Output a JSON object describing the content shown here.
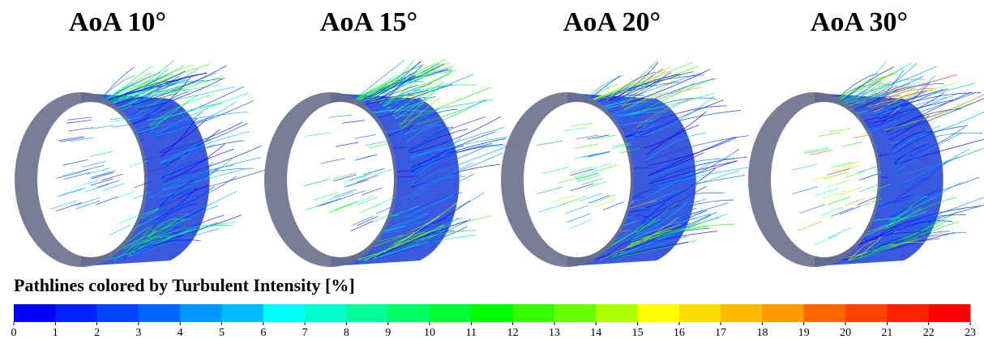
{
  "panels": [
    {
      "title": "AoA 10°"
    },
    {
      "title": "AoA 15°"
    },
    {
      "title": "AoA 20°"
    },
    {
      "title": "AoA 30°"
    }
  ],
  "colorbar": {
    "label": "Pathlines colored by Turbulent Intensity [%]",
    "ticks": [
      0,
      1,
      2,
      3,
      4,
      5,
      6,
      7,
      8,
      9,
      10,
      11,
      12,
      13,
      14,
      15,
      16,
      17,
      18,
      19,
      20,
      21,
      22,
      23
    ],
    "colors": [
      "#0000ff",
      "#0022ff",
      "#0044ff",
      "#0066ff",
      "#0099ff",
      "#00bbff",
      "#00ffff",
      "#00ffcc",
      "#00ff99",
      "#00ff66",
      "#00ff33",
      "#00ff00",
      "#33ff00",
      "#66ff00",
      "#aaff00",
      "#ffff00",
      "#ffdd00",
      "#ffbb00",
      "#ff9900",
      "#ff6600",
      "#ff4400",
      "#ff2200",
      "#ff0000"
    ]
  }
}
